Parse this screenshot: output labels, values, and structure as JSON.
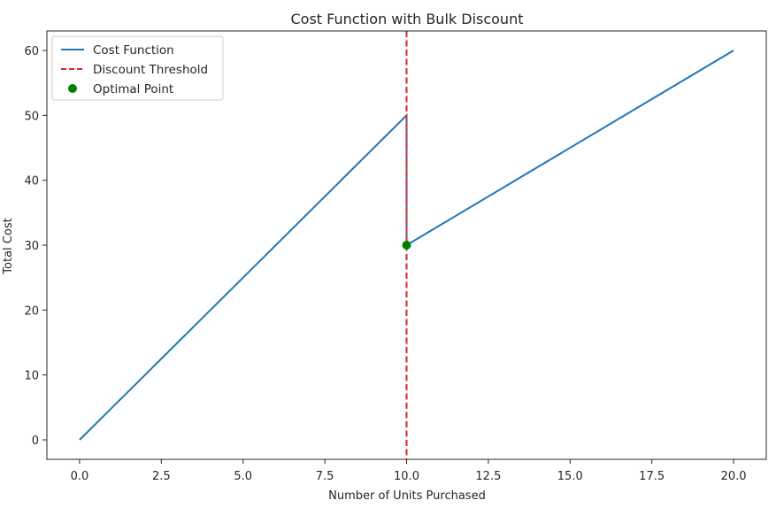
{
  "chart_data": {
    "type": "line",
    "title": "Cost Function with Bulk Discount",
    "xlabel": "Number of Units Purchased",
    "ylabel": "Total Cost",
    "xlim": [
      -1,
      21
    ],
    "ylim": [
      -3,
      63
    ],
    "xticks": [
      0,
      2.5,
      5,
      7.5,
      10,
      12.5,
      15,
      17.5,
      20
    ],
    "xtick_labels": [
      "0.0",
      "2.5",
      "5.0",
      "7.5",
      "10.0",
      "12.5",
      "15.0",
      "17.5",
      "20.0"
    ],
    "yticks": [
      0,
      10,
      20,
      30,
      40,
      50,
      60
    ],
    "ytick_labels": [
      "0",
      "10",
      "20",
      "30",
      "40",
      "50",
      "60"
    ],
    "grid": false,
    "legend_position": "top-left",
    "series": [
      {
        "name": "Cost Function",
        "kind": "line",
        "color": "#1f77b4",
        "x": [
          0,
          10,
          10,
          20
        ],
        "y": [
          0,
          50,
          30,
          60
        ]
      }
    ],
    "threshold": {
      "name": "Discount Threshold",
      "kind": "vline",
      "color": "#d62728",
      "x": 10
    },
    "optimal_point": {
      "name": "Optimal Point",
      "kind": "point",
      "color": "#008000",
      "x": 10,
      "y": 30
    }
  }
}
